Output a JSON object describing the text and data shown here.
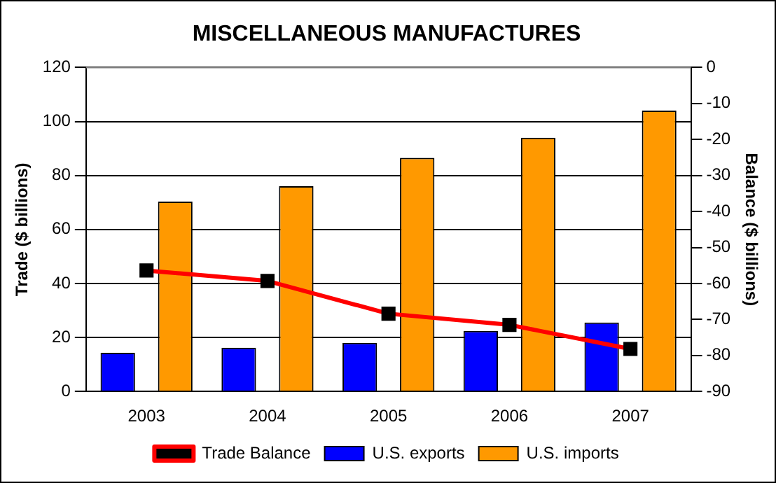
{
  "chart_data": {
    "type": "bar",
    "title": "MISCELLANEOUS MANUFACTURES",
    "ylabel": "Trade ($ billions)",
    "y2label": "Balance ($ billions)",
    "categories": [
      "2003",
      "2004",
      "2005",
      "2006",
      "2007"
    ],
    "series": [
      {
        "name": "U.S. exports",
        "color": "#0000ff",
        "values": [
          14.3,
          16.2,
          18,
          22.4,
          25.5
        ]
      },
      {
        "name": "U.S. imports",
        "color": "#ff9900",
        "values": [
          70.3,
          76,
          86.5,
          94,
          104
        ]
      },
      {
        "name": "Trade Balance",
        "type": "line",
        "axis": "y2",
        "color": "#ff0000",
        "marker": "square",
        "values": [
          -56.4,
          -59.3,
          -68.4,
          -71.5,
          -78.2
        ]
      }
    ],
    "ylim": [
      0,
      120
    ],
    "yticks": [
      0,
      20,
      40,
      60,
      80,
      100,
      120
    ],
    "y2lim": [
      -90,
      0
    ],
    "y2ticks": [
      -90,
      -80,
      -70,
      -60,
      -50,
      -40,
      -30,
      -20,
      -10,
      0
    ],
    "grid": "y",
    "legend": "bottom"
  }
}
